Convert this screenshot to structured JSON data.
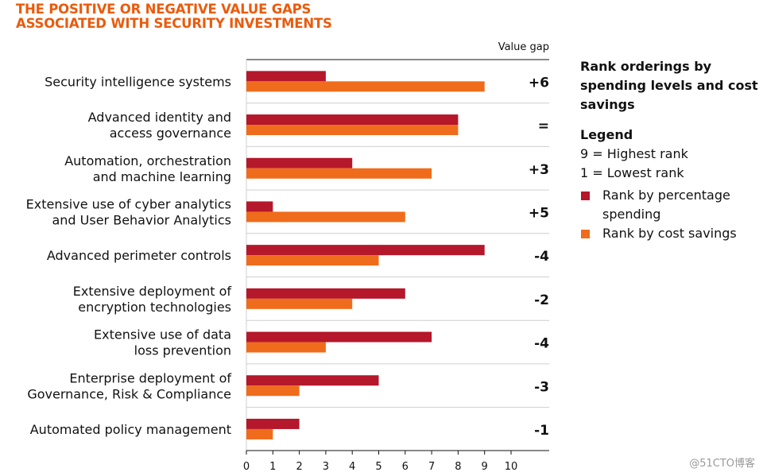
{
  "title": {
    "line1": "THE POSITIVE OR NEGATIVE VALUE GAPS",
    "line2": "ASSOCIATED WITH SECURITY INVESTMENTS"
  },
  "value_gap_header": "Value gap",
  "side_panel": {
    "rank_title_line1": "Rank orderings by",
    "rank_title_line2": "spending levels and cost",
    "rank_title_line3": "savings",
    "legend_title": "Legend",
    "highest": "9 = Highest rank",
    "lowest": "1 = Lowest rank"
  },
  "watermark": "@51CTO博客",
  "colors": {
    "spending": "#b5172b",
    "savings": "#ef6c1c",
    "title": "#ea5b0c"
  },
  "chart_data": {
    "type": "bar",
    "orientation": "horizontal",
    "title": "THE POSITIVE OR NEGATIVE VALUE GAPS ASSOCIATED WITH SECURITY INVESTMENTS",
    "xlim": [
      0,
      11
    ],
    "xticks": [
      "0",
      "1",
      "2",
      "3",
      "4",
      "5",
      "6",
      "7",
      "8",
      "9",
      "10"
    ],
    "categories": [
      [
        "Security intelligence systems"
      ],
      [
        "Advanced identity and",
        "access governance"
      ],
      [
        "Automation, orchestration",
        "and machine learning"
      ],
      [
        "Extensive use of cyber analytics",
        "and User Behavior Analytics"
      ],
      [
        "Advanced perimeter controls"
      ],
      [
        "Extensive deployment of",
        "encryption technologies"
      ],
      [
        "Extensive use of data",
        "loss prevention"
      ],
      [
        "Enterprise deployment of",
        "Governance, Risk & Compliance"
      ],
      [
        "Automated policy management"
      ]
    ],
    "series": [
      {
        "name": "Rank by percentage spending",
        "legend_lines": [
          "Rank by percentage",
          "spending"
        ],
        "values": [
          3,
          8,
          4,
          1,
          9,
          6,
          7,
          5,
          2
        ]
      },
      {
        "name": "Rank by cost savings",
        "legend_lines": [
          "Rank by cost savings"
        ],
        "values": [
          9,
          8,
          7,
          6,
          5,
          4,
          3,
          2,
          1
        ]
      }
    ],
    "value_gaps": [
      "+6",
      "=",
      "+3",
      "+5",
      "-4",
      "-2",
      "-4",
      "-3",
      "-1"
    ]
  }
}
